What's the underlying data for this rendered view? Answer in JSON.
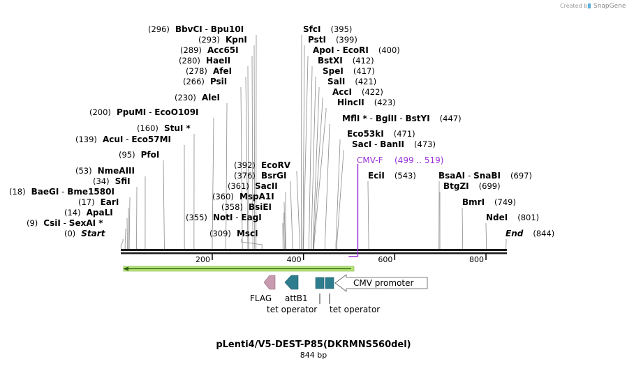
{
  "credit": {
    "prefix": "Created by",
    "brand": "SnapGene"
  },
  "title": "pLenti4/V5-DEST-P85(DKRMNS560del)",
  "subtitle": "844 bp",
  "ruler_ticks": [
    {
      "label": "200",
      "bp": 200
    },
    {
      "label": "400",
      "bp": 400
    },
    {
      "label": "600",
      "bp": 600
    },
    {
      "label": "800",
      "bp": 800
    }
  ],
  "sites": [
    {
      "pos": "(296)",
      "names": [
        "BbvCI",
        "Bpu10I"
      ],
      "bp": 296
    },
    {
      "pos": "(293)",
      "names": [
        "KpnI"
      ],
      "bp": 293
    },
    {
      "pos": "(289)",
      "names": [
        "Acc65I"
      ],
      "bp": 289
    },
    {
      "pos": "(280)",
      "names": [
        "HaeII"
      ],
      "bp": 280
    },
    {
      "pos": "(278)",
      "names": [
        "AfeI"
      ],
      "bp": 278
    },
    {
      "pos": "(266)",
      "names": [
        "PsiI"
      ],
      "bp": 266
    },
    {
      "pos": "(230)",
      "names": [
        "AleI"
      ],
      "bp": 230
    },
    {
      "pos": "(200)",
      "names": [
        "PpuMI",
        "EcoO109I"
      ],
      "bp": 200
    },
    {
      "pos": "(160)",
      "names": [
        "StuI *"
      ],
      "bp": 160
    },
    {
      "pos": "(139)",
      "names": [
        "AcuI",
        "Eco57MI"
      ],
      "bp": 139
    },
    {
      "pos": "(95)",
      "names": [
        "PfoI"
      ],
      "bp": 95
    },
    {
      "pos": "(53)",
      "names": [
        "NmeAIII"
      ],
      "bp": 53
    },
    {
      "pos": "(34)",
      "names": [
        "SfiI"
      ],
      "bp": 34
    },
    {
      "pos": "(18)",
      "names": [
        "BaeGI",
        "Bme1580I"
      ],
      "bp": 18
    },
    {
      "pos": "(17)",
      "names": [
        "EarI"
      ],
      "bp": 17
    },
    {
      "pos": "(14)",
      "names": [
        "ApaLI"
      ],
      "bp": 14
    },
    {
      "pos": "(9)",
      "names": [
        "CsiI",
        "SexAI *"
      ],
      "bp": 9
    },
    {
      "pos": "(0)",
      "names": [
        "Start"
      ],
      "bp": 0,
      "italic": true
    },
    {
      "pos": "(395)",
      "names": [
        "SfcI"
      ],
      "bp": 395
    },
    {
      "pos": "(399)",
      "names": [
        "PstI"
      ],
      "bp": 399
    },
    {
      "pos": "(400)",
      "names": [
        "ApoI",
        "EcoRI"
      ],
      "bp": 400
    },
    {
      "pos": "(412)",
      "names": [
        "BstXI"
      ],
      "bp": 412
    },
    {
      "pos": "(417)",
      "names": [
        "SpeI"
      ],
      "bp": 417
    },
    {
      "pos": "(421)",
      "names": [
        "SalI"
      ],
      "bp": 421
    },
    {
      "pos": "(422)",
      "names": [
        "AccI"
      ],
      "bp": 422
    },
    {
      "pos": "(423)",
      "names": [
        "HincII"
      ],
      "bp": 423
    },
    {
      "pos": "(447)",
      "names": [
        "MflI *",
        "BglII",
        "BstYI"
      ],
      "bp": 447
    },
    {
      "pos": "(471)",
      "names": [
        "Eco53kI"
      ],
      "bp": 471
    },
    {
      "pos": "(473)",
      "names": [
        "SacI",
        "BanII"
      ],
      "bp": 473
    },
    {
      "pos": "(392)",
      "names": [
        "EcoRV"
      ],
      "bp": 392
    },
    {
      "pos": "(376)",
      "names": [
        "BsrGI"
      ],
      "bp": 376
    },
    {
      "pos": "(361)",
      "names": [
        "SacII"
      ],
      "bp": 361
    },
    {
      "pos": "(360)",
      "names": [
        "MspA1I"
      ],
      "bp": 360
    },
    {
      "pos": "(358)",
      "names": [
        "BsiEI"
      ],
      "bp": 358
    },
    {
      "pos": "(355)",
      "names": [
        "NotI",
        "EagI"
      ],
      "bp": 355
    },
    {
      "pos": "(309)",
      "names": [
        "MscI"
      ],
      "bp": 309
    },
    {
      "pos": "(543)",
      "names": [
        "EciI"
      ],
      "bp": 543
    },
    {
      "pos": "(697)",
      "names": [
        "BsaAI",
        "SnaBI"
      ],
      "bp": 697
    },
    {
      "pos": "(699)",
      "names": [
        "BtgZI"
      ],
      "bp": 699
    },
    {
      "pos": "(749)",
      "names": [
        "BmrI"
      ],
      "bp": 749
    },
    {
      "pos": "(801)",
      "names": [
        "NdeI"
      ],
      "bp": 801
    },
    {
      "pos": "(844)",
      "names": [
        "End"
      ],
      "bp": 844,
      "italic": true
    }
  ],
  "primer": {
    "name": "CMV-F",
    "range": "(499 .. 519)",
    "start_bp": 499,
    "end_bp": 519
  },
  "features": [
    {
      "label": "FLAG",
      "type": "arrow-left",
      "color": "#c89ab0"
    },
    {
      "label": "attB1",
      "type": "arrow-left",
      "color": "#2e7d8f"
    },
    {
      "label": "tet operator",
      "type": "box",
      "color": "#2e7d8f"
    },
    {
      "label": "tet operator",
      "type": "box",
      "color": "#2e7d8f"
    },
    {
      "label": "CMV promoter",
      "type": "arrow-left-outline",
      "color": "#ffffff"
    }
  ],
  "colors": {
    "backbone": "#1a1a1a",
    "orf": "#b8e67a",
    "orf_arrow": "#2f5f10",
    "primer": "#9b30d9"
  }
}
